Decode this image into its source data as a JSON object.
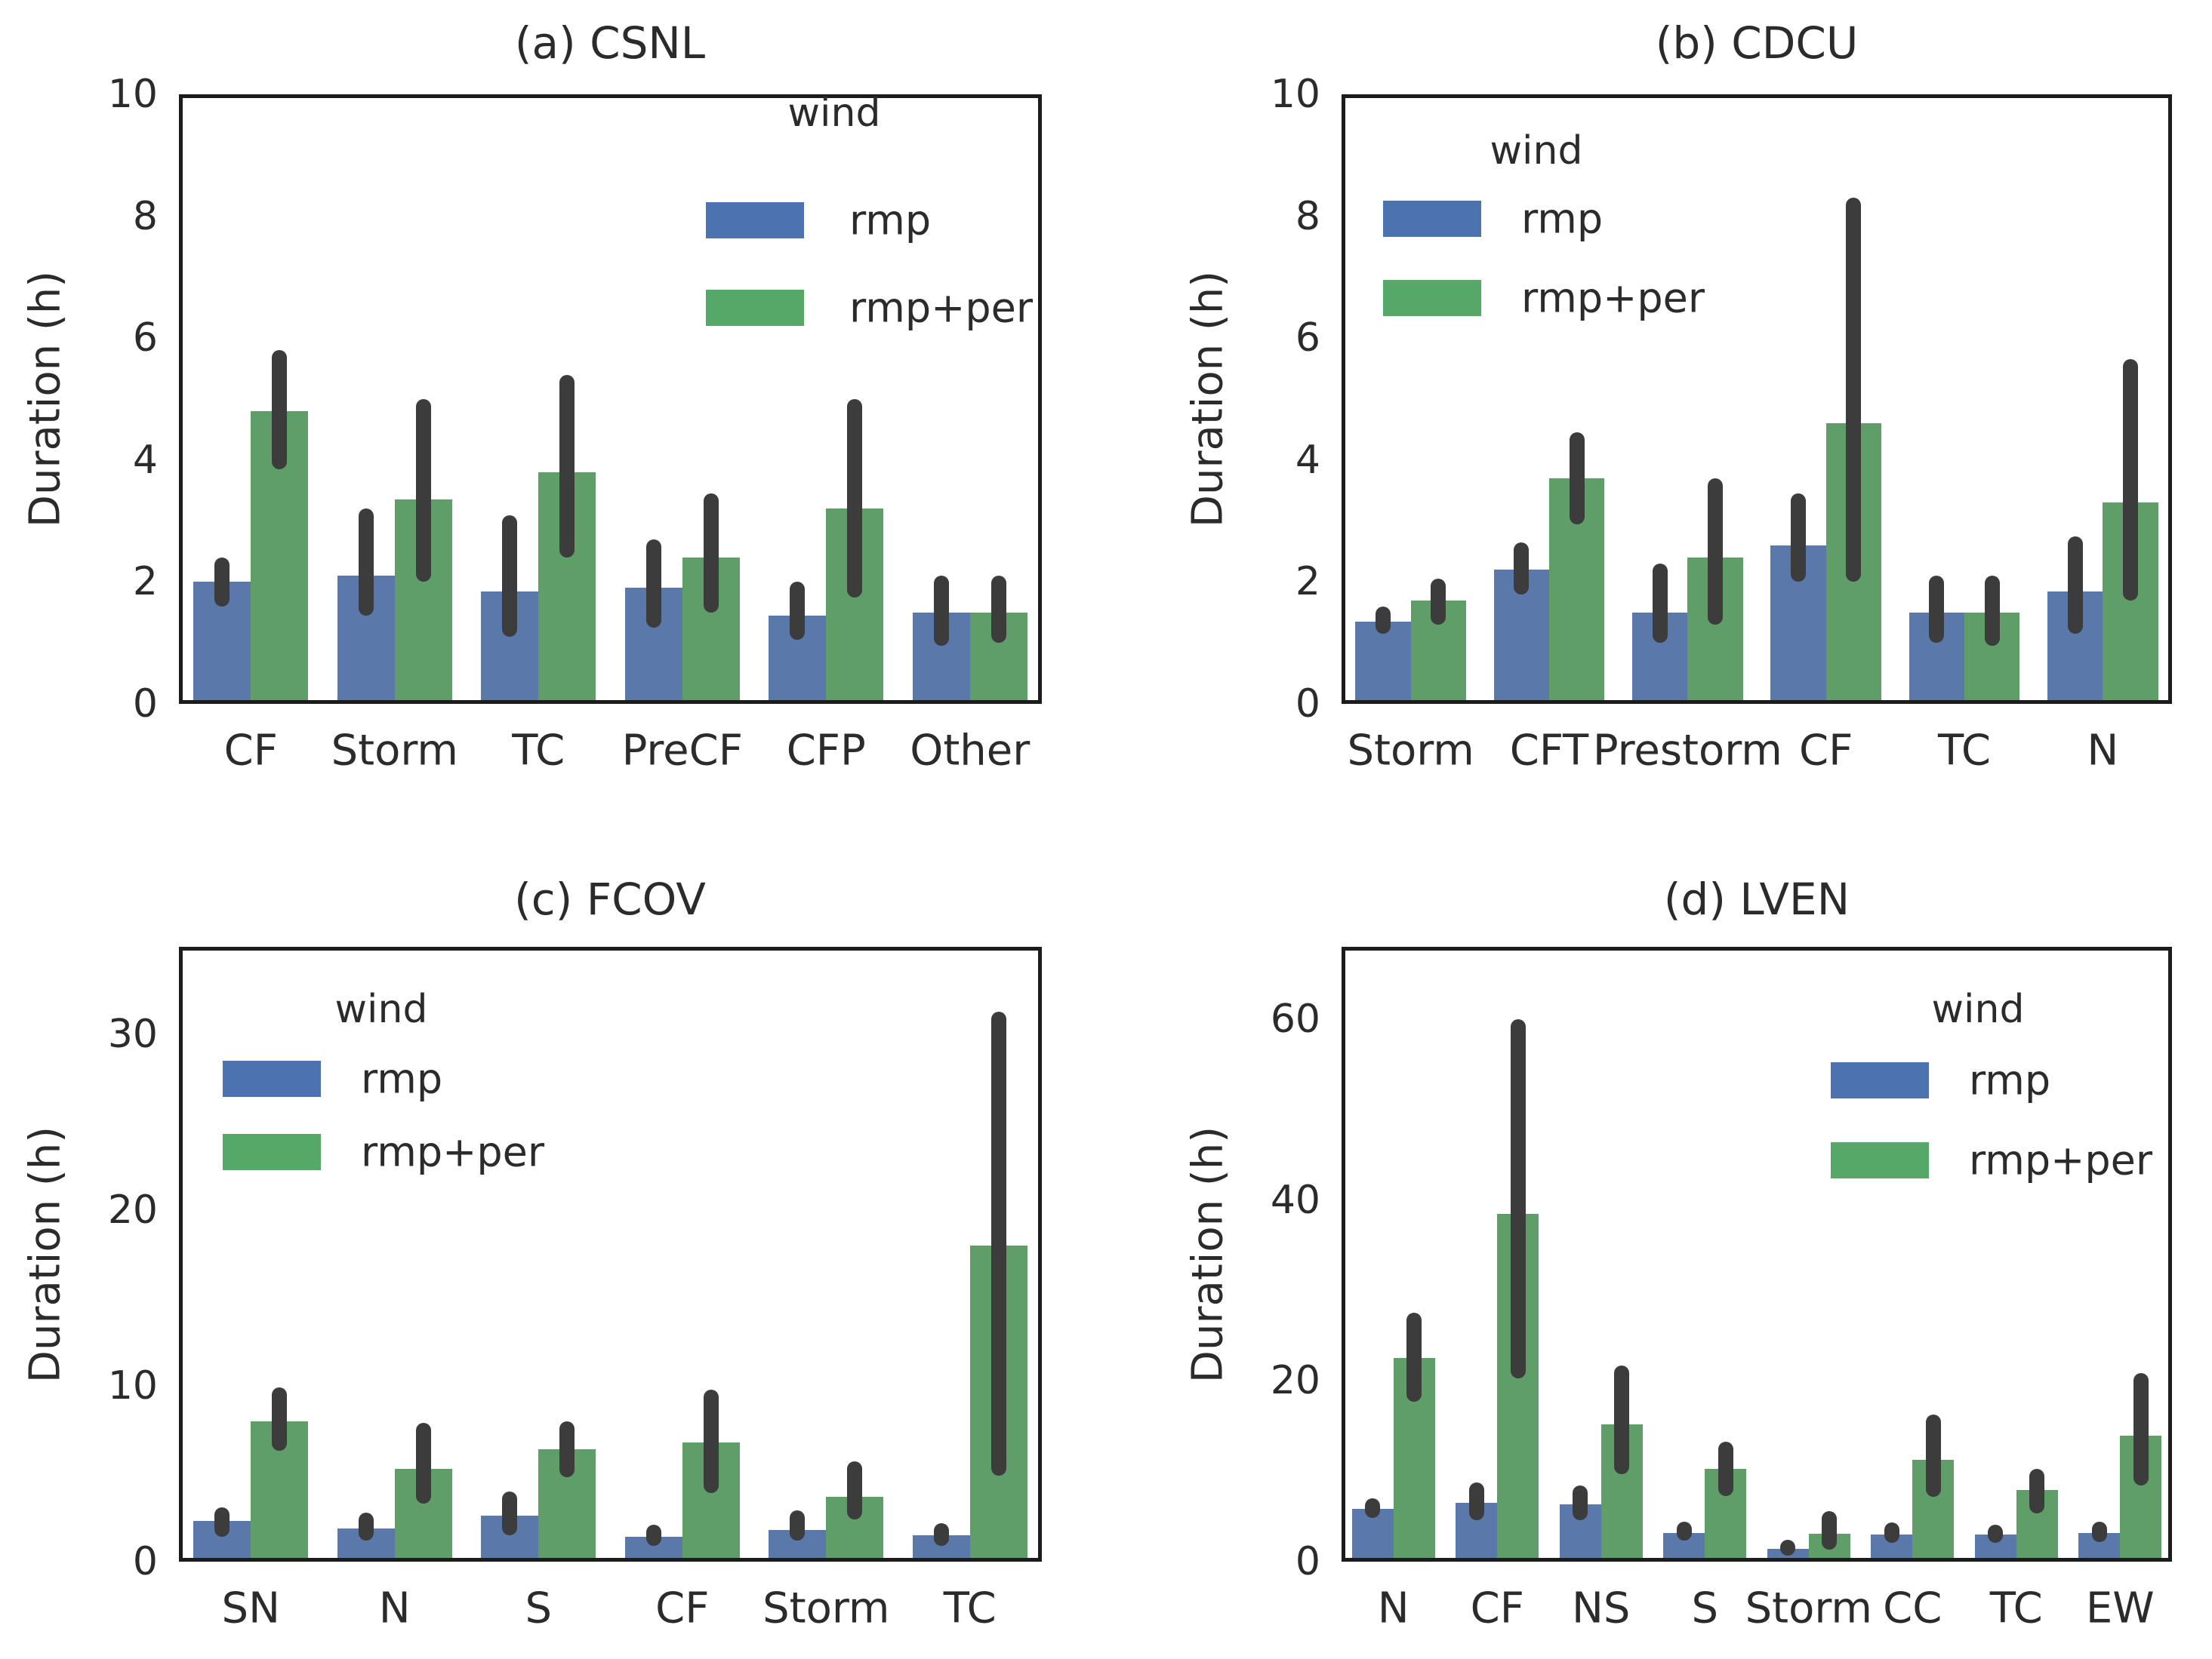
{
  "figure": {
    "background": "#ffffff",
    "text_color": "#2b2b2b",
    "legend_title": "wind",
    "series_names": [
      "rmp",
      "rmp+per"
    ],
    "colors": {
      "rmp_bar": "#5a78aa",
      "rmp_per_bar": "#5f9e69",
      "rmp_legend": "#4c72b0",
      "rmp_per_legend": "#55a868",
      "error_bar": "#3c3c3c",
      "spine": "#1c1c1c"
    }
  },
  "chart_data": [
    {
      "id": "a",
      "type": "bar",
      "title": "(a) CSNL",
      "ylabel": "Duration (h)",
      "ylim": [
        0,
        10
      ],
      "yticks": [
        0,
        2,
        4,
        6,
        8,
        10
      ],
      "grid": false,
      "legend_position": "upper right",
      "categories": [
        "CF",
        "Storm",
        "TC",
        "PreCF",
        "CFP",
        "Other"
      ],
      "series": [
        {
          "name": "rmp",
          "values": [
            2.0,
            2.1,
            1.85,
            1.9,
            1.45,
            1.5
          ],
          "error_low": [
            1.6,
            1.45,
            1.1,
            1.25,
            1.05,
            0.95
          ],
          "error_high": [
            2.4,
            3.2,
            3.1,
            2.7,
            2.0,
            2.1
          ]
        },
        {
          "name": "rmp+per",
          "values": [
            4.8,
            3.35,
            3.8,
            2.4,
            3.2,
            1.5
          ],
          "error_low": [
            3.85,
            2.0,
            2.4,
            1.5,
            1.75,
            1.0
          ],
          "error_high": [
            5.8,
            5.0,
            5.4,
            3.45,
            5.0,
            2.1
          ]
        }
      ]
    },
    {
      "id": "b",
      "type": "bar",
      "title": "(b) CDCU",
      "ylabel": "Duration (h)",
      "ylim": [
        0,
        10
      ],
      "yticks": [
        0,
        2,
        4,
        6,
        8,
        10
      ],
      "grid": false,
      "legend_position": "upper left",
      "categories": [
        "Storm",
        "CFT",
        "Prestorm",
        "CF",
        "TC",
        "N"
      ],
      "series": [
        {
          "name": "rmp",
          "values": [
            1.35,
            2.2,
            1.5,
            2.6,
            1.5,
            1.85
          ],
          "error_low": [
            1.15,
            1.8,
            1.0,
            2.0,
            1.0,
            1.15
          ],
          "error_high": [
            1.6,
            2.65,
            2.3,
            3.45,
            2.1,
            2.75
          ]
        },
        {
          "name": "rmp+per",
          "values": [
            1.7,
            3.7,
            2.4,
            4.6,
            1.5,
            3.3
          ],
          "error_low": [
            1.3,
            2.95,
            1.3,
            2.0,
            0.95,
            1.7
          ],
          "error_high": [
            2.05,
            4.45,
            3.7,
            8.3,
            2.1,
            5.65
          ]
        }
      ]
    },
    {
      "id": "c",
      "type": "bar",
      "title": "(c) FCOV",
      "ylabel": "Duration (h)",
      "ylim": [
        0,
        35
      ],
      "yticks": [
        0,
        10,
        20,
        30
      ],
      "grid": false,
      "legend_position": "upper left",
      "categories": [
        "SN",
        "N",
        "S",
        "CF",
        "Storm",
        "TC"
      ],
      "series": [
        {
          "name": "rmp",
          "values": [
            2.3,
            1.9,
            2.6,
            1.4,
            1.8,
            1.5
          ],
          "error_low": [
            1.4,
            1.2,
            1.5,
            0.9,
            1.2,
            0.9
          ],
          "error_high": [
            3.1,
            2.8,
            4.0,
            2.1,
            2.9,
            2.2
          ]
        },
        {
          "name": "rmp+per",
          "values": [
            8.0,
            5.3,
            6.4,
            6.8,
            3.7,
            18.0
          ],
          "error_low": [
            6.3,
            3.3,
            4.8,
            3.9,
            2.4,
            4.9
          ],
          "error_high": [
            9.9,
            7.9,
            8.0,
            9.8,
            5.7,
            31.3
          ]
        }
      ]
    },
    {
      "id": "d",
      "type": "bar",
      "title": "(d) LVEN",
      "ylabel": "Duration (h)",
      "ylim": [
        0,
        68
      ],
      "yticks": [
        0,
        20,
        40,
        60
      ],
      "grid": false,
      "legend_position": "upper right",
      "categories": [
        "N",
        "CF",
        "NS",
        "S",
        "Storm",
        "CC",
        "TC",
        "EW"
      ],
      "series": [
        {
          "name": "rmp",
          "values": [
            5.8,
            6.5,
            6.3,
            3.2,
            1.4,
            3.0,
            3.0,
            3.2
          ],
          "error_low": [
            4.8,
            4.6,
            4.6,
            2.3,
            0.7,
            2.1,
            2.1,
            2.2
          ],
          "error_high": [
            7.0,
            8.8,
            8.4,
            4.4,
            2.4,
            4.3,
            4.1,
            4.4
          ]
        },
        {
          "name": "rmp+per",
          "values": [
            22.5,
            38.5,
            15.2,
            10.3,
            3.1,
            11.3,
            7.9,
            13.9
          ],
          "error_low": [
            17.7,
            20.3,
            9.7,
            7.3,
            1.3,
            7.2,
            5.3,
            8.4
          ],
          "error_high": [
            27.5,
            60.0,
            21.7,
            13.3,
            5.6,
            16.3,
            10.3,
            20.9
          ]
        }
      ]
    }
  ]
}
